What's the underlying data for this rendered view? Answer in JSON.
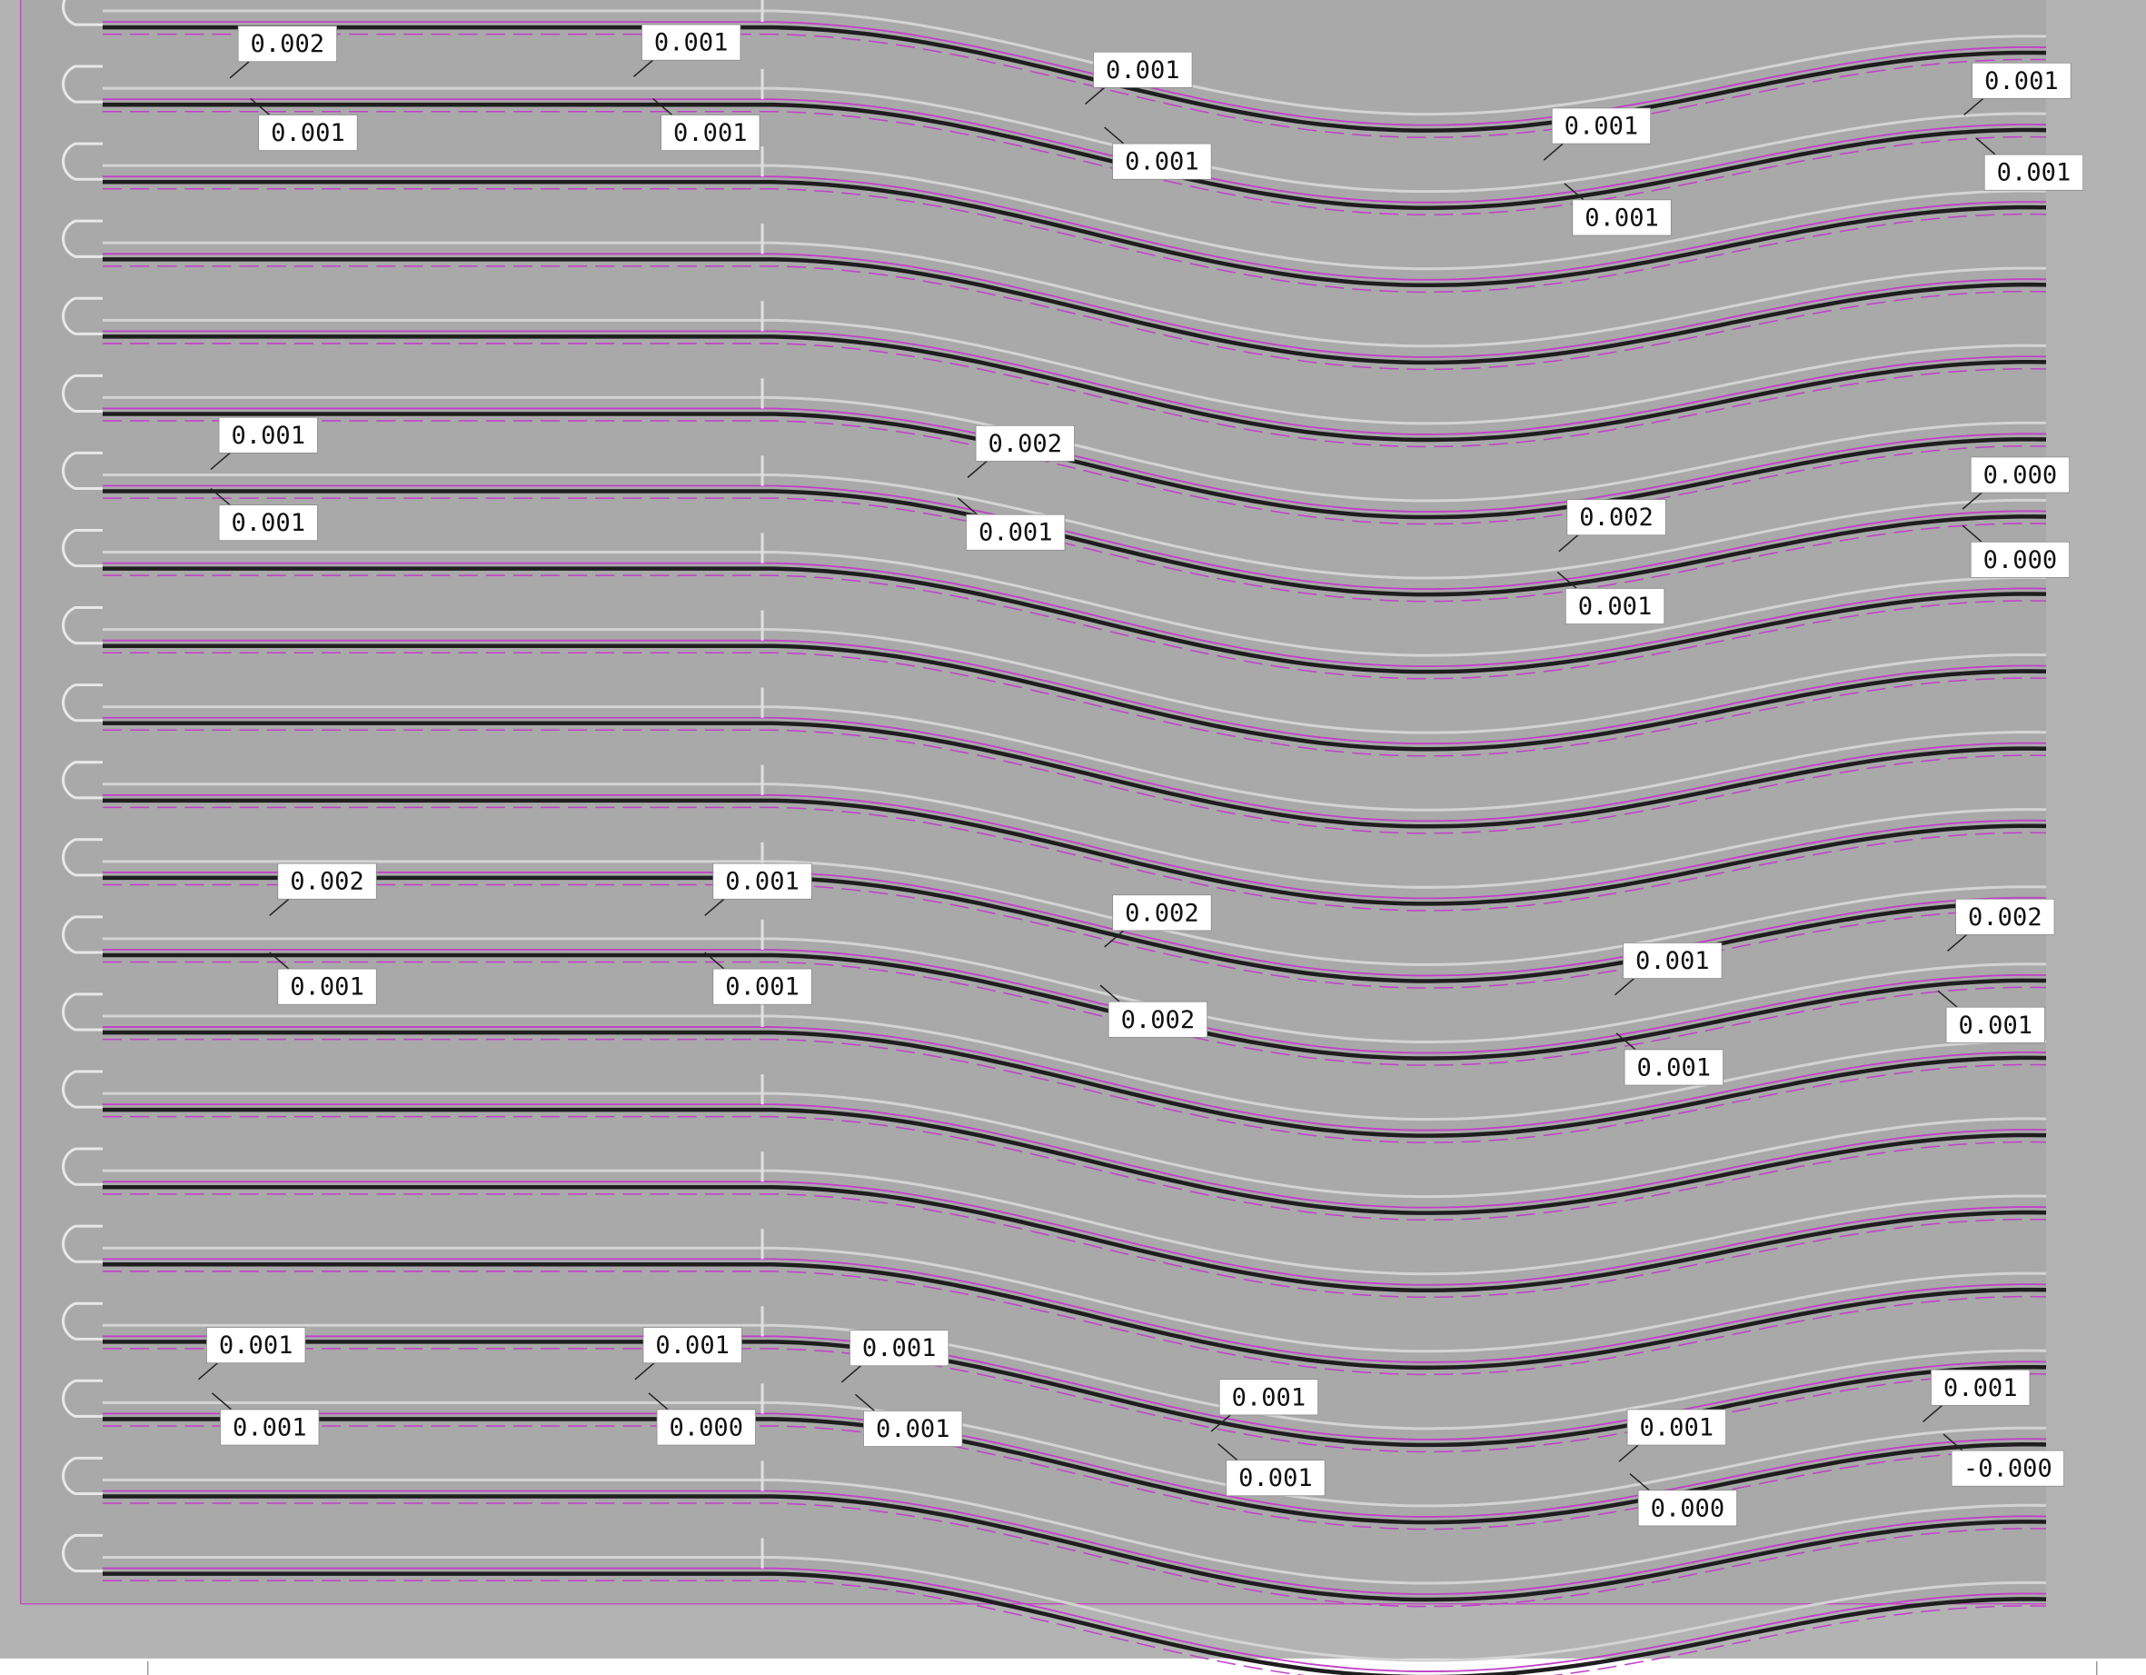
{
  "labels": [
    "0.002",
    "0.001",
    "0.001",
    "0.001",
    "0.001",
    "0.001",
    "0.001",
    "0.001",
    "0.001",
    "0.001",
    "0.001",
    "0.002",
    "0.000",
    "0.001",
    "0.002",
    "0.001",
    "0.000",
    "0.001",
    "0.002",
    "0.001",
    "0.002",
    "0.002",
    "0.001",
    "0.001",
    "0.001",
    "0.002",
    "0.001",
    "0.001",
    "0.001",
    "0.001",
    "0.001",
    "0.001",
    "0.001",
    "0.001",
    "0.000",
    "0.001",
    "0.001",
    "0.001",
    "0.000",
    "-0.000"
  ]
}
